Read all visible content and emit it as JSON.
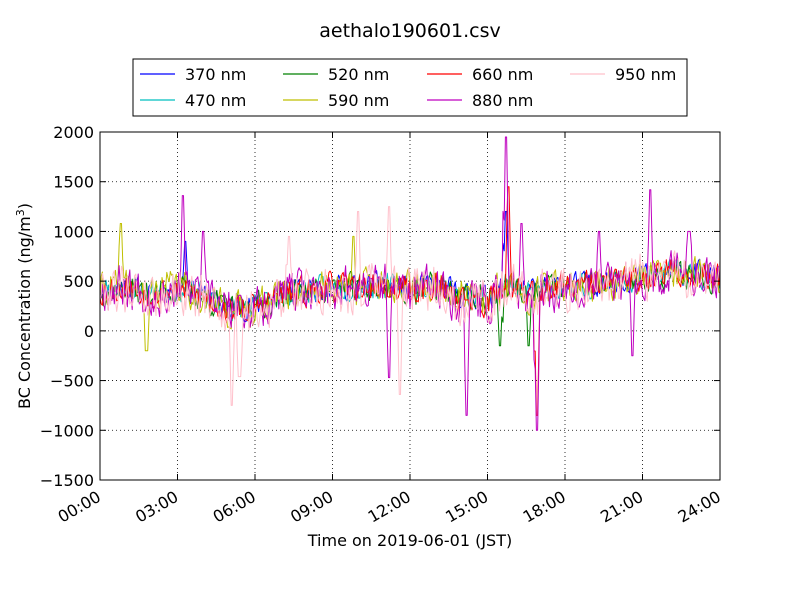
{
  "chart_data": {
    "type": "line",
    "title": "aethalo190601.csv",
    "xlabel": "Time on 2019-06-01 (JST)",
    "ylabel_main": "BC Concentration (ng/m",
    "ylabel_sup": "3",
    "ylabel_end": ")",
    "xlim": [
      0,
      24
    ],
    "ylim": [
      -1500,
      2000
    ],
    "x_ticks": [
      0,
      3,
      6,
      9,
      12,
      15,
      18,
      21,
      24
    ],
    "x_tick_labels": [
      "00:00",
      "03:00",
      "06:00",
      "09:00",
      "12:00",
      "15:00",
      "18:00",
      "21:00",
      "24:00"
    ],
    "y_ticks": [
      -1500,
      -1000,
      -500,
      0,
      500,
      1000,
      1500,
      2000
    ],
    "y_tick_labels": [
      "−1500",
      "−1000",
      "−500",
      "0",
      "500",
      "1000",
      "1500",
      "2000"
    ],
    "grid": true,
    "legend_position": "top",
    "series": [
      {
        "name": "370 nm",
        "color": "#0000ff",
        "anchors": [
          [
            0,
            420
          ],
          [
            1,
            460
          ],
          [
            2,
            380
          ],
          [
            3,
            440
          ],
          [
            4,
            360
          ],
          [
            5,
            230
          ],
          [
            6,
            250
          ],
          [
            7,
            380
          ],
          [
            8,
            420
          ],
          [
            9,
            450
          ],
          [
            10,
            440
          ],
          [
            11,
            470
          ],
          [
            12,
            420
          ],
          [
            13,
            470
          ],
          [
            14,
            360
          ],
          [
            15,
            330
          ],
          [
            15.8,
            520
          ],
          [
            16.5,
            380
          ],
          [
            17,
            420
          ],
          [
            18,
            460
          ],
          [
            19,
            470
          ],
          [
            20,
            500
          ],
          [
            21,
            560
          ],
          [
            22,
            600
          ],
          [
            23,
            580
          ],
          [
            24,
            540
          ]
        ],
        "amplitude": 170,
        "seed": 11,
        "events": [
          [
            3.3,
            900
          ],
          [
            15.7,
            1200
          ]
        ]
      },
      {
        "name": "470 nm",
        "color": "#00bfbf",
        "anchors": [
          [
            0,
            410
          ],
          [
            1,
            450
          ],
          [
            2,
            370
          ],
          [
            3,
            430
          ],
          [
            4,
            350
          ],
          [
            5,
            220
          ],
          [
            6,
            240
          ],
          [
            7,
            370
          ],
          [
            8,
            410
          ],
          [
            9,
            440
          ],
          [
            10,
            430
          ],
          [
            11,
            460
          ],
          [
            12,
            410
          ],
          [
            13,
            460
          ],
          [
            14,
            350
          ],
          [
            15,
            320
          ],
          [
            15.8,
            500
          ],
          [
            16.5,
            370
          ],
          [
            17,
            410
          ],
          [
            18,
            450
          ],
          [
            19,
            460
          ],
          [
            20,
            490
          ],
          [
            21,
            550
          ],
          [
            22,
            590
          ],
          [
            23,
            570
          ],
          [
            24,
            530
          ]
        ],
        "amplitude": 170,
        "seed": 23,
        "events": []
      },
      {
        "name": "520 nm",
        "color": "#008000",
        "anchors": [
          [
            0,
            400
          ],
          [
            1,
            440
          ],
          [
            2,
            360
          ],
          [
            3,
            420
          ],
          [
            4,
            340
          ],
          [
            5,
            210
          ],
          [
            6,
            240
          ],
          [
            7,
            360
          ],
          [
            8,
            400
          ],
          [
            9,
            440
          ],
          [
            10,
            420
          ],
          [
            11,
            450
          ],
          [
            12,
            400
          ],
          [
            13,
            450
          ],
          [
            14,
            330
          ],
          [
            15,
            300
          ],
          [
            15.8,
            480
          ],
          [
            16.5,
            350
          ],
          [
            17,
            400
          ],
          [
            18,
            440
          ],
          [
            19,
            450
          ],
          [
            20,
            480
          ],
          [
            21,
            540
          ],
          [
            22,
            580
          ],
          [
            23,
            560
          ],
          [
            24,
            520
          ]
        ],
        "amplitude": 200,
        "seed": 37,
        "events": [
          [
            15.5,
            -150
          ],
          [
            16.6,
            -150
          ]
        ]
      },
      {
        "name": "590 nm",
        "color": "#bfbf00",
        "anchors": [
          [
            0,
            420
          ],
          [
            1,
            470
          ],
          [
            2,
            400
          ],
          [
            3,
            460
          ],
          [
            4,
            350
          ],
          [
            5,
            200
          ],
          [
            6,
            230
          ],
          [
            7,
            360
          ],
          [
            8,
            410
          ],
          [
            9,
            450
          ],
          [
            10,
            450
          ],
          [
            11,
            470
          ],
          [
            12,
            420
          ],
          [
            13,
            470
          ],
          [
            14,
            340
          ],
          [
            15,
            300
          ],
          [
            15.8,
            500
          ],
          [
            16.5,
            360
          ],
          [
            17,
            410
          ],
          [
            18,
            460
          ],
          [
            19,
            470
          ],
          [
            20,
            490
          ],
          [
            21,
            550
          ],
          [
            22,
            590
          ],
          [
            23,
            560
          ],
          [
            24,
            520
          ]
        ],
        "amplitude": 240,
        "seed": 41,
        "events": [
          [
            0.8,
            1080
          ],
          [
            1.8,
            -200
          ],
          [
            9.8,
            950
          ]
        ]
      },
      {
        "name": "660 nm",
        "color": "#ff0000",
        "anchors": [
          [
            0,
            400
          ],
          [
            1,
            440
          ],
          [
            2,
            370
          ],
          [
            3,
            430
          ],
          [
            4,
            340
          ],
          [
            5,
            210
          ],
          [
            6,
            230
          ],
          [
            7,
            360
          ],
          [
            8,
            400
          ],
          [
            9,
            440
          ],
          [
            10,
            430
          ],
          [
            11,
            450
          ],
          [
            12,
            400
          ],
          [
            13,
            450
          ],
          [
            14,
            330
          ],
          [
            15,
            300
          ],
          [
            15.8,
            500
          ],
          [
            16.5,
            350
          ],
          [
            17,
            400
          ],
          [
            18,
            450
          ],
          [
            19,
            460
          ],
          [
            20,
            490
          ],
          [
            21,
            550
          ],
          [
            22,
            590
          ],
          [
            23,
            560
          ],
          [
            24,
            520
          ]
        ],
        "amplitude": 200,
        "seed": 53,
        "events": [
          [
            15.8,
            1450
          ],
          [
            16.9,
            -850
          ]
        ]
      },
      {
        "name": "880 nm",
        "color": "#bf00bf",
        "anchors": [
          [
            0,
            420
          ],
          [
            1,
            460
          ],
          [
            2,
            360
          ],
          [
            3,
            430
          ],
          [
            4,
            330
          ],
          [
            5,
            200
          ],
          [
            6,
            220
          ],
          [
            7,
            360
          ],
          [
            8,
            400
          ],
          [
            9,
            450
          ],
          [
            10,
            420
          ],
          [
            11,
            460
          ],
          [
            12,
            400
          ],
          [
            13,
            460
          ],
          [
            14,
            300
          ],
          [
            15,
            280
          ],
          [
            15.8,
            520
          ],
          [
            16.5,
            340
          ],
          [
            17,
            400
          ],
          [
            18,
            460
          ],
          [
            19,
            460
          ],
          [
            20,
            480
          ],
          [
            21,
            560
          ],
          [
            22,
            600
          ],
          [
            23,
            560
          ],
          [
            24,
            520
          ]
        ],
        "amplitude": 300,
        "seed": 67,
        "events": [
          [
            3.2,
            1360
          ],
          [
            4.0,
            1000
          ],
          [
            11.2,
            -470
          ],
          [
            14.2,
            -850
          ],
          [
            15.7,
            1950
          ],
          [
            16.3,
            1080
          ],
          [
            16.9,
            -1000
          ],
          [
            19.3,
            1000
          ],
          [
            20.6,
            -250
          ],
          [
            21.3,
            1420
          ],
          [
            22.8,
            1000
          ]
        ]
      },
      {
        "name": "950 nm",
        "color": "#ffc0cb",
        "anchors": [
          [
            0,
            420
          ],
          [
            1,
            440
          ],
          [
            2,
            360
          ],
          [
            3,
            410
          ],
          [
            4,
            320
          ],
          [
            5,
            200
          ],
          [
            6,
            220
          ],
          [
            7,
            340
          ],
          [
            8,
            390
          ],
          [
            9,
            430
          ],
          [
            10,
            410
          ],
          [
            11,
            450
          ],
          [
            12,
            390
          ],
          [
            13,
            440
          ],
          [
            14,
            300
          ],
          [
            15,
            300
          ],
          [
            15.8,
            480
          ],
          [
            16.5,
            330
          ],
          [
            17,
            390
          ],
          [
            18,
            440
          ],
          [
            19,
            440
          ],
          [
            20,
            470
          ],
          [
            21,
            540
          ],
          [
            22,
            580
          ],
          [
            23,
            550
          ],
          [
            24,
            510
          ]
        ],
        "amplitude": 330,
        "seed": 79,
        "events": [
          [
            5.1,
            -750
          ],
          [
            5.4,
            -460
          ],
          [
            10.0,
            1200
          ],
          [
            11.2,
            1250
          ],
          [
            11.6,
            -640
          ],
          [
            7.3,
            950
          ]
        ]
      }
    ]
  }
}
